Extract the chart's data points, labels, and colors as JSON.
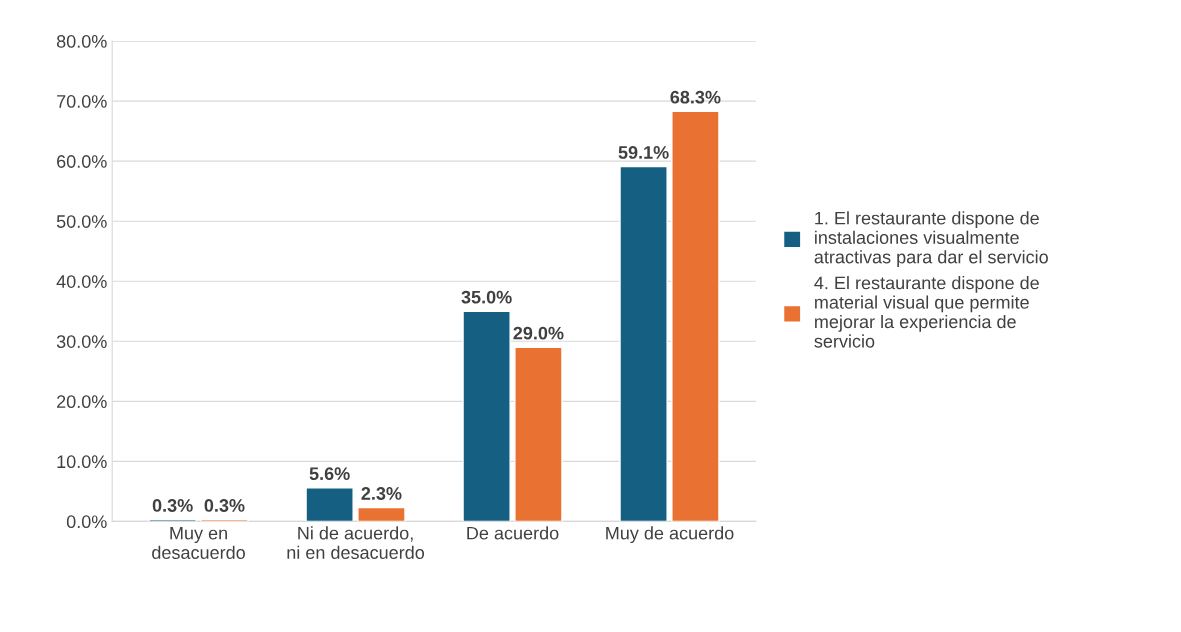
{
  "chart_data": {
    "type": "bar",
    "categories": [
      "Muy en desacuerdo",
      "Ni de acuerdo, ni en desacuerdo",
      "De acuerdo",
      "Muy de acuerdo"
    ],
    "series": [
      {
        "name": "1. El restaurante dispone de instalaciones visualmente atractivas para dar el servicio",
        "color": "#156082",
        "values": [
          0.3,
          5.6,
          35.0,
          59.1
        ],
        "value_labels": [
          "0.3%",
          "5.6%",
          "35.0%",
          "59.1%"
        ]
      },
      {
        "name": "4. El restaurante dispone de material visual que permite mejorar la experiencia de servicio",
        "color": "#e97132",
        "values": [
          0.3,
          2.3,
          29.0,
          68.3
        ],
        "value_labels": [
          "0.3%",
          "2.3%",
          "29.0%",
          "68.3%"
        ]
      }
    ],
    "ylim": [
      0,
      80
    ],
    "yticks": [
      {
        "value": 0,
        "label": "0.0%"
      },
      {
        "value": 10,
        "label": "10.0%"
      },
      {
        "value": 20,
        "label": "20.0%"
      },
      {
        "value": 30,
        "label": "30.0%"
      },
      {
        "value": 40,
        "label": "40.0%"
      },
      {
        "value": 50,
        "label": "50.0%"
      },
      {
        "value": 60,
        "label": "60.0%"
      },
      {
        "value": 70,
        "label": "70.0%"
      },
      {
        "value": 80,
        "label": "80.0%"
      }
    ],
    "grid": "y",
    "legend": "right"
  }
}
